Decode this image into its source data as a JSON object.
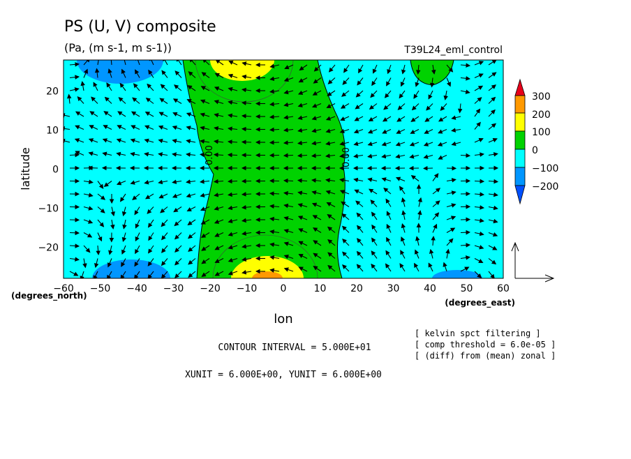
{
  "chart_data": {
    "type": "heatmap",
    "title": "PS (U, V) composite",
    "subtitle": "(Pa, (m s-1, m s-1))",
    "experiment": "T39L24_eml_control",
    "xlabel": "lon",
    "ylabel": "latitude",
    "x_unit_label": "(degrees_east)",
    "y_unit_label": "(degrees_north)",
    "xlim": [
      -60,
      60
    ],
    "ylim": [
      -28,
      28
    ],
    "x_ticks": [
      -60,
      -50,
      -40,
      -30,
      -20,
      -10,
      0,
      10,
      20,
      30,
      40,
      50,
      60
    ],
    "y_ticks": [
      -20,
      -10,
      0,
      10,
      20
    ],
    "colorbar": {
      "labels": [
        "300",
        "200",
        "100",
        "0",
        "−100",
        "−200"
      ],
      "bins": [
        {
          "min": 300,
          "max": null,
          "color": "#e8001a"
        },
        {
          "min": 200,
          "max": 300,
          "color": "#ff9900"
        },
        {
          "min": 100,
          "max": 200,
          "color": "#ffff00"
        },
        {
          "min": 0,
          "max": 100,
          "color": "#00d200"
        },
        {
          "min": -100,
          "max": 0,
          "color": "#00ffff"
        },
        {
          "min": -200,
          "max": -100,
          "color": "#0096ff"
        },
        {
          "min": null,
          "max": -200,
          "color": "#0050ff"
        }
      ]
    },
    "contour_labels": [
      "0.00",
      "0.00"
    ],
    "background_color": "#00ffff",
    "contour_interval_text": "CONTOUR INTERVAL = 5.000E+01",
    "unit_text": "XUNIT = 6.000E+00, YUNIT = 6.000E+00",
    "notes": [
      "[ kelvin spct filtering ]",
      "[ comp threshold = 6.0e-05 ]",
      "[ (diff) from (mean) zonal ]"
    ]
  }
}
